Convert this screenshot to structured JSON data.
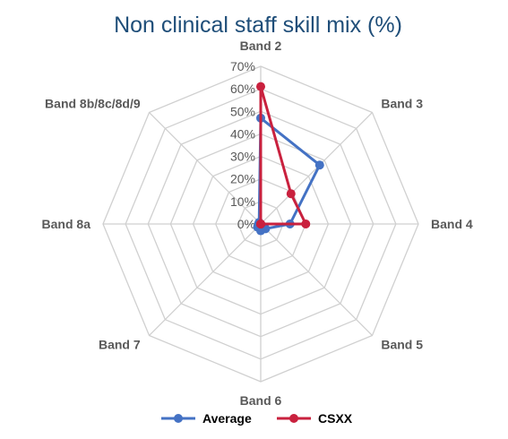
{
  "chart_data": {
    "type": "radar",
    "title": "Non clinical staff skill mix (%)",
    "categories": [
      "Band 2",
      "Band 3",
      "Band 4",
      "Band 5",
      "Band 6",
      "Band 7",
      "Band 8a",
      "Band 8b/8c/8d/9"
    ],
    "r_ticks": [
      "0%",
      "10%",
      "20%",
      "30%",
      "40%",
      "50%",
      "60%",
      "70%"
    ],
    "r_range": [
      0,
      70
    ],
    "grid": true,
    "legend_position": "bottom",
    "series": [
      {
        "name": "Average",
        "color": "#4472c4",
        "values": [
          47,
          37,
          13,
          3,
          3,
          2,
          1,
          1
        ]
      },
      {
        "name": "CSXX",
        "color": "#c9213e",
        "values": [
          61,
          19,
          20,
          0,
          0,
          0,
          0,
          0
        ]
      }
    ]
  }
}
